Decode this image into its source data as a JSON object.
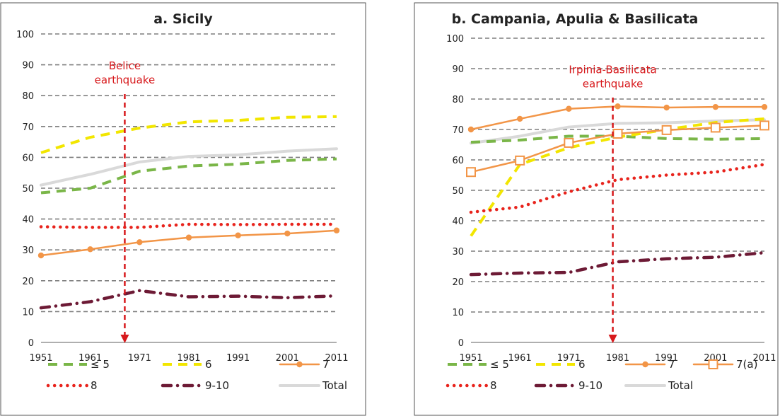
{
  "chart_data": [
    {
      "type": "line",
      "title": "a. Sicily",
      "x": [
        1951,
        1961,
        1971,
        1981,
        1991,
        2001,
        2011
      ],
      "ylim": [
        0,
        100
      ],
      "yticks": [
        0,
        10,
        20,
        30,
        40,
        50,
        60,
        70,
        80,
        90,
        100
      ],
      "grid": true,
      "legend_placement": "bottom",
      "series": [
        {
          "name": "≤ 5",
          "color": "#7ab648",
          "style": "dashed",
          "values": [
            48.5,
            50,
            55.5,
            57.2,
            57.8,
            59,
            59.5
          ]
        },
        {
          "name": "6",
          "color": "#f2e600",
          "style": "dashed",
          "values": [
            61.5,
            66.5,
            69.5,
            71.5,
            72,
            73,
            73.2
          ]
        },
        {
          "name": "7",
          "color": "#f29547",
          "style": "solid-marker",
          "values": [
            28.2,
            30.2,
            32.5,
            34,
            34.7,
            35.3,
            36.3
          ]
        },
        {
          "name": "8",
          "color": "#e8231c",
          "style": "dotted",
          "values": [
            37.5,
            37.3,
            37.3,
            38.3,
            38.2,
            38.3,
            38.3
          ]
        },
        {
          "name": "9-10",
          "color": "#6d1a35",
          "style": "dashdot",
          "values": [
            11.2,
            13.2,
            16.8,
            14.8,
            15,
            14.5,
            15.1
          ]
        },
        {
          "name": "Total",
          "color": "#d9d9d9",
          "style": "solid",
          "values": [
            51,
            54.5,
            58.5,
            60.3,
            60.8,
            62,
            62.8
          ]
        }
      ],
      "annotation": {
        "text": [
          "Belice",
          "earthquake"
        ],
        "x": 1968,
        "color": "#d7191c"
      }
    },
    {
      "type": "line",
      "title": "b. Campania, Apulia & Basilicata",
      "x": [
        1951,
        1961,
        1971,
        1981,
        1991,
        2001,
        2011
      ],
      "ylim": [
        0,
        100
      ],
      "yticks": [
        0,
        10,
        20,
        30,
        40,
        50,
        60,
        70,
        80,
        90,
        100
      ],
      "grid": true,
      "legend_placement": "bottom",
      "series": [
        {
          "name": "≤ 5",
          "color": "#7ab648",
          "style": "dashed",
          "values": [
            65.8,
            66.5,
            67.8,
            67.8,
            67,
            66.8,
            67
          ]
        },
        {
          "name": "6",
          "color": "#f2e600",
          "style": "dashed",
          "values": [
            35,
            58.5,
            64,
            67.5,
            70,
            72.3,
            73.5
          ]
        },
        {
          "name": "7",
          "color": "#f29547",
          "style": "solid-marker",
          "values": [
            70,
            73.5,
            76.8,
            77.6,
            77.2,
            77.4,
            77.4
          ]
        },
        {
          "name": "7(a)",
          "color": "#f29547",
          "style": "square-marker",
          "values": [
            56,
            59.8,
            65.6,
            68.6,
            69.8,
            70.6,
            71.3
          ]
        },
        {
          "name": "8",
          "color": "#e8231c",
          "style": "dotted",
          "values": [
            42.8,
            44.5,
            49.5,
            53.5,
            55,
            56,
            58.5
          ]
        },
        {
          "name": "9-10",
          "color": "#6d1a35",
          "style": "dashdot",
          "values": [
            22.3,
            22.8,
            23,
            26.5,
            27.5,
            28,
            29.5
          ]
        },
        {
          "name": "Total",
          "color": "#d9d9d9",
          "style": "solid",
          "values": [
            65.5,
            67.8,
            70.8,
            72,
            72.2,
            72.8,
            73.2
          ]
        }
      ],
      "annotation": {
        "text": [
          "Irpinia-Basilicata",
          "earthquake"
        ],
        "x": 1980,
        "color": "#d7191c"
      }
    }
  ]
}
